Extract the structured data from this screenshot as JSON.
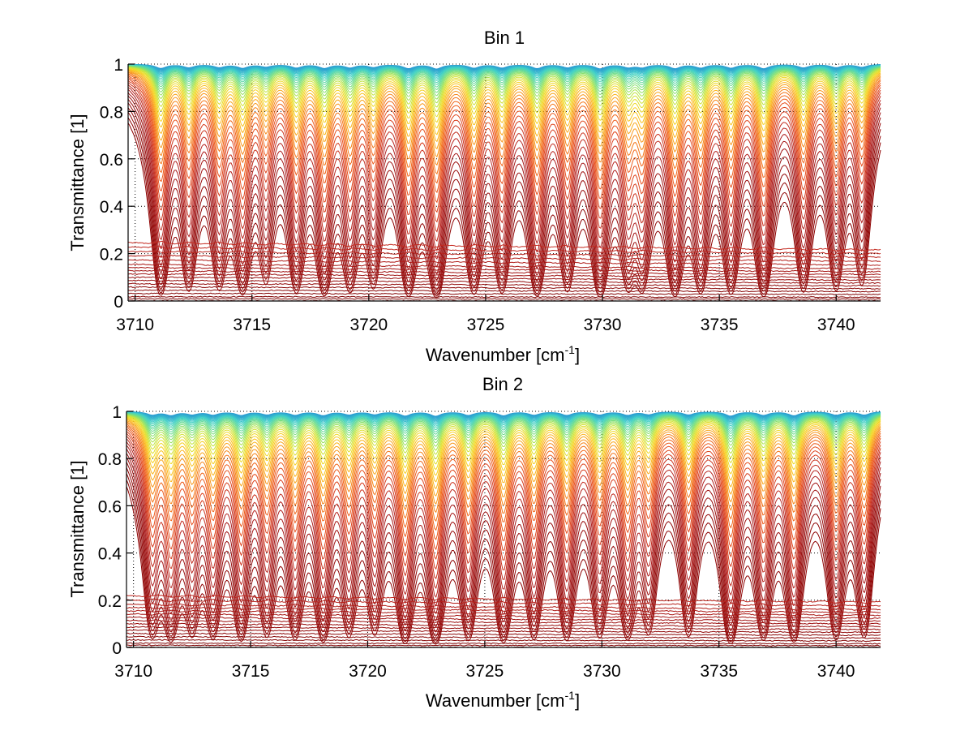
{
  "figure": {
    "background": "#ffffff"
  },
  "chart_data": [
    {
      "type": "line",
      "title": "Bin 1",
      "xlabel": "Wavenumber [cm",
      "xlabel_superscript": "-1",
      "xlabel_suffix": "]",
      "ylabel": "Transmittance [1]",
      "xlim": [
        3709.7,
        3741.9
      ],
      "ylim": [
        0,
        1
      ],
      "xticks": [
        3710,
        3715,
        3720,
        3725,
        3730,
        3735,
        3740
      ],
      "xtick_labels": [
        "3710",
        "3715",
        "3720",
        "3725",
        "3730",
        "3735",
        "3740"
      ],
      "yticks": [
        0,
        0.2,
        0.4,
        0.6,
        0.8,
        1
      ],
      "ytick_labels": [
        "0",
        "0.2",
        "0.4",
        "0.6",
        "0.8",
        "1"
      ],
      "grid": true,
      "legend": "none",
      "series_count": 60,
      "series_description": "Family of transmittance spectra, one per layer/path; colors run from dark red (lowest transmittance) through orange and yellow to green/cyan/blue (transmittance near 1)",
      "colormap": [
        "#8b0000",
        "#b22222",
        "#d2381e",
        "#e8501e",
        "#f26a1a",
        "#f7901a",
        "#fbb41c",
        "#f5d823",
        "#c8e63c",
        "#7be07a",
        "#3fd0c8",
        "#1f7fd8"
      ],
      "absorption_lines": [
        {
          "center": 3711.1,
          "strength": 1.0
        },
        {
          "center": 3712.3,
          "strength": 0.8
        },
        {
          "center": 3713.6,
          "strength": 0.75
        },
        {
          "center": 3714.6,
          "strength": 0.9
        },
        {
          "center": 3715.6,
          "strength": 0.6
        },
        {
          "center": 3716.9,
          "strength": 0.85
        },
        {
          "center": 3718.1,
          "strength": 0.95
        },
        {
          "center": 3719.2,
          "strength": 0.8
        },
        {
          "center": 3720.2,
          "strength": 0.7
        },
        {
          "center": 3721.7,
          "strength": 1.0
        },
        {
          "center": 3722.9,
          "strength": 1.1
        },
        {
          "center": 3724.5,
          "strength": 0.9
        },
        {
          "center": 3725.7,
          "strength": 0.85
        },
        {
          "center": 3727.2,
          "strength": 1.0
        },
        {
          "center": 3728.5,
          "strength": 0.8
        },
        {
          "center": 3729.9,
          "strength": 1.05
        },
        {
          "center": 3731.1,
          "strength": 0.7
        },
        {
          "center": 3731.7,
          "strength": 0.75
        },
        {
          "center": 3733.1,
          "strength": 1.0
        },
        {
          "center": 3734.2,
          "strength": 0.85
        },
        {
          "center": 3735.5,
          "strength": 0.9
        },
        {
          "center": 3736.9,
          "strength": 1.05
        },
        {
          "center": 3738.6,
          "strength": 0.85
        },
        {
          "center": 3740.0,
          "strength": 0.8
        },
        {
          "center": 3741.1,
          "strength": 0.7
        }
      ],
      "baseline_curve_levels": [
        0.27,
        0.25,
        0.23,
        0.21,
        0.19,
        0.17,
        0.155,
        0.14,
        0.125,
        0.11,
        0.095,
        0.08,
        0.065,
        0.05,
        0.035,
        0.02,
        0.01,
        0.0
      ]
    },
    {
      "type": "line",
      "title": "Bin 2",
      "xlabel": "Wavenumber [cm",
      "xlabel_superscript": "-1",
      "xlabel_suffix": "]",
      "ylabel": "Transmittance [1]",
      "xlim": [
        3709.7,
        3741.9
      ],
      "ylim": [
        0,
        1
      ],
      "xticks": [
        3710,
        3715,
        3720,
        3725,
        3730,
        3735,
        3740
      ],
      "xtick_labels": [
        "3710",
        "3715",
        "3720",
        "3725",
        "3730",
        "3735",
        "3740"
      ],
      "yticks": [
        0,
        0.2,
        0.4,
        0.6,
        0.8,
        1
      ],
      "ytick_labels": [
        "0",
        "0.2",
        "0.4",
        "0.6",
        "0.8",
        "1"
      ],
      "grid": true,
      "legend": "none",
      "series_count": 60,
      "series_description": "Family of transmittance spectra, one per layer/path; colors run from dark red (lowest transmittance) through orange and yellow to green/cyan/blue (transmittance near 1)",
      "colormap": [
        "#8b0000",
        "#b22222",
        "#d2381e",
        "#e8501e",
        "#f26a1a",
        "#f7901a",
        "#fbb41c",
        "#f5d823",
        "#c8e63c",
        "#7be07a",
        "#3fd0c8",
        "#1f7fd8"
      ],
      "absorption_lines": [
        {
          "center": 3710.8,
          "strength": 0.8
        },
        {
          "center": 3711.6,
          "strength": 0.9
        },
        {
          "center": 3712.5,
          "strength": 0.7
        },
        {
          "center": 3713.4,
          "strength": 0.8
        },
        {
          "center": 3714.6,
          "strength": 0.9
        },
        {
          "center": 3715.7,
          "strength": 0.75
        },
        {
          "center": 3716.9,
          "strength": 0.85
        },
        {
          "center": 3718.1,
          "strength": 0.95
        },
        {
          "center": 3719.2,
          "strength": 0.75
        },
        {
          "center": 3720.3,
          "strength": 0.7
        },
        {
          "center": 3721.6,
          "strength": 1.05
        },
        {
          "center": 3722.9,
          "strength": 1.1
        },
        {
          "center": 3724.3,
          "strength": 0.9
        },
        {
          "center": 3725.8,
          "strength": 1.0
        },
        {
          "center": 3727.1,
          "strength": 0.85
        },
        {
          "center": 3728.5,
          "strength": 0.9
        },
        {
          "center": 3729.9,
          "strength": 0.8
        },
        {
          "center": 3731.1,
          "strength": 0.85
        },
        {
          "center": 3732.0,
          "strength": 0.7
        },
        {
          "center": 3733.7,
          "strength": 0.8
        },
        {
          "center": 3735.5,
          "strength": 1.1
        },
        {
          "center": 3736.9,
          "strength": 0.9
        },
        {
          "center": 3738.2,
          "strength": 1.0
        },
        {
          "center": 3740.0,
          "strength": 0.9
        },
        {
          "center": 3741.2,
          "strength": 0.85
        }
      ],
      "baseline_curve_levels": [
        0.24,
        0.22,
        0.2,
        0.185,
        0.17,
        0.155,
        0.14,
        0.125,
        0.11,
        0.095,
        0.08,
        0.065,
        0.05,
        0.035,
        0.02,
        0.01,
        0.0
      ]
    }
  ]
}
